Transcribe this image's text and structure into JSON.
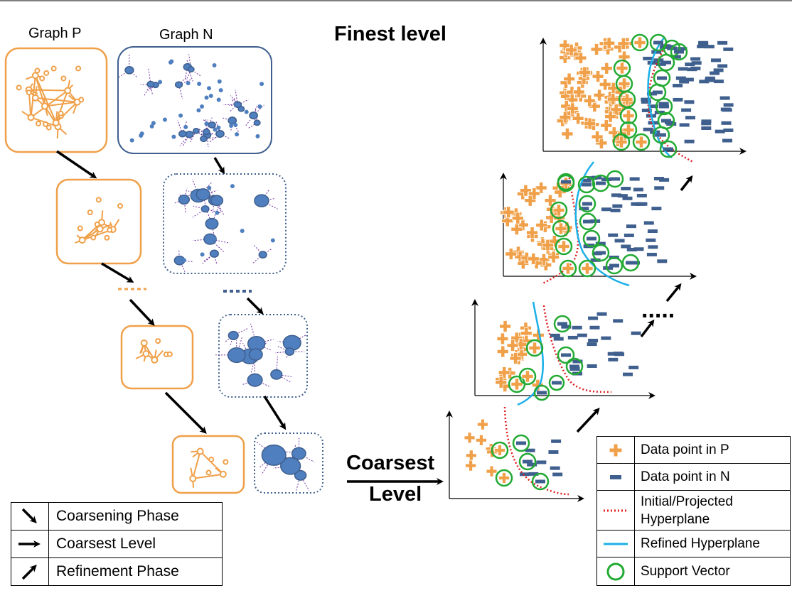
{
  "labels": {
    "graph_p": "Graph P",
    "graph_n": "Graph N",
    "finest_level": "Finest level",
    "coarsest_level_line1": "Coarsest",
    "coarsest_level_line2": "Level",
    "ellipsis": "....."
  },
  "phase_legend": [
    {
      "icon": "diagonal-down-arrow-icon",
      "label": "Coarsening Phase"
    },
    {
      "icon": "right-arrow-icon",
      "label": "Coarsest Level"
    },
    {
      "icon": "diagonal-up-arrow-icon",
      "label": "Refinement Phase"
    }
  ],
  "marker_legend": [
    {
      "icon": "orange-plus-icon",
      "label": "Data point in P"
    },
    {
      "icon": "blue-minus-icon",
      "label": "Data point in N"
    },
    {
      "icon": "red-dotted-line-icon",
      "label_line1": "Initial/Projected",
      "label_line2": "Hyperplane"
    },
    {
      "icon": "blue-solid-line-icon",
      "label": "Refined Hyperplane"
    },
    {
      "icon": "green-circle-icon",
      "label": "Support Vector"
    }
  ],
  "colors": {
    "class_p": "#f0a049",
    "class_n": "#3f5f8e",
    "node_n": "#4f7fbf",
    "edge_n": "#7030a0",
    "initial_hyperplane": "#e02020",
    "refined_hyperplane": "#1ab0e8",
    "support_vector": "#22aa33"
  }
}
